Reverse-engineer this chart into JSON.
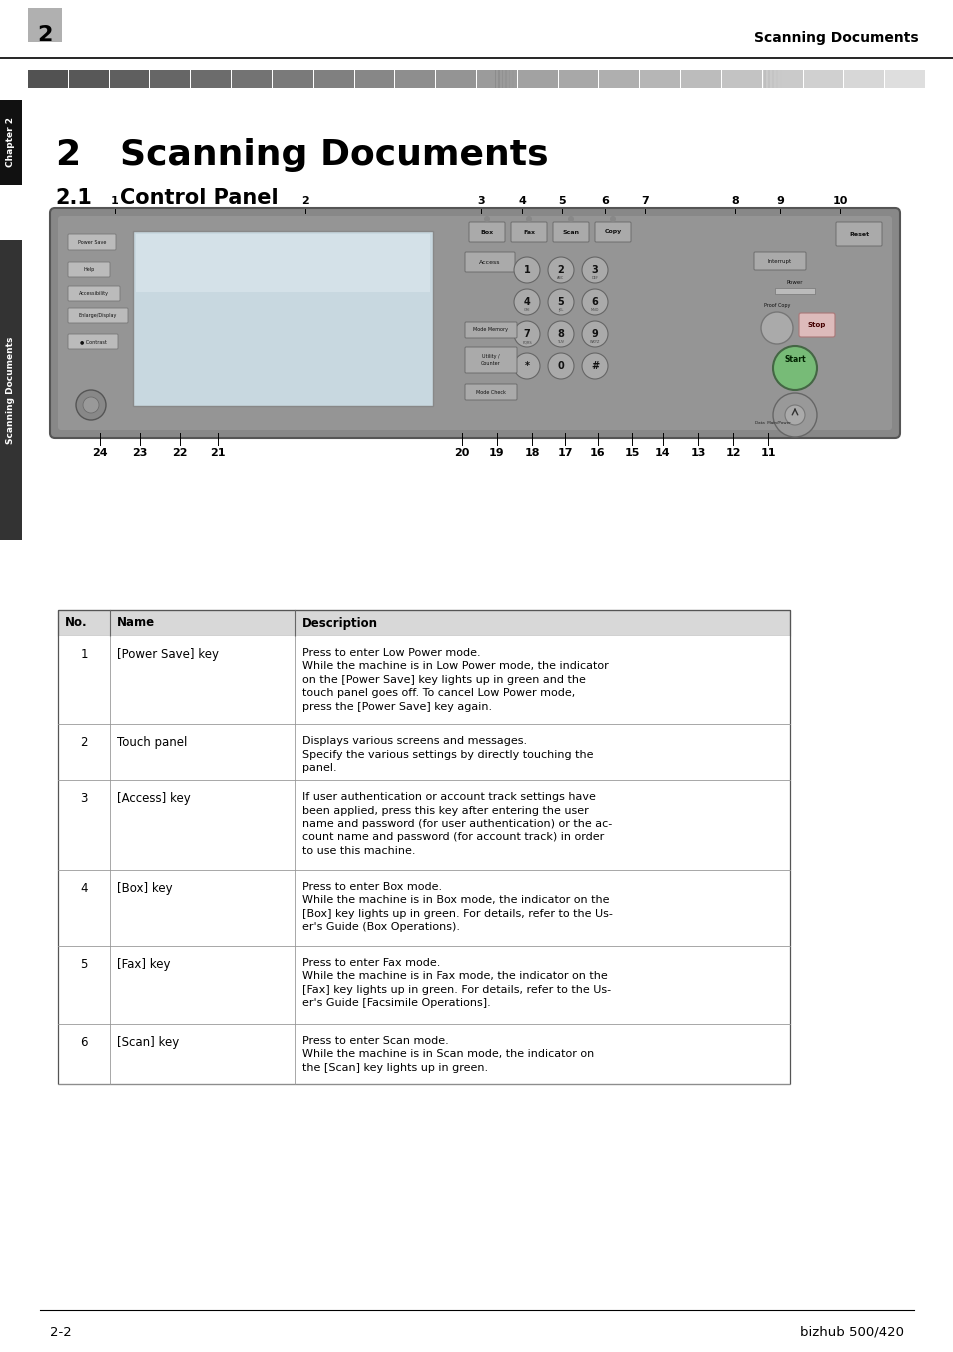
{
  "page_bg": "#ffffff",
  "header_num": "2",
  "header_title": "Scanning Documents",
  "chapter_tab_text": "Chapter 2",
  "side_tab_text": "Scanning Documents",
  "chapter_number": "2",
  "chapter_heading": "Scanning Documents",
  "section_number": "2.1",
  "section_heading": "Control Panel",
  "footer_left": "2-2",
  "footer_right": "bizhub 500/420",
  "table_header": [
    "No.",
    "Name",
    "Description"
  ],
  "table_header_bg": "#d8d8d8",
  "table_rows": [
    {
      "no": "1",
      "name": "[Power Save] key",
      "desc": "Press to enter Low Power mode.\nWhile the machine is in Low Power mode, the indicator\non the [Power Save] key lights up in green and the\ntouch panel goes off. To cancel Low Power mode,\npress the [Power Save] key again."
    },
    {
      "no": "2",
      "name": "Touch panel",
      "desc": "Displays various screens and messages.\nSpecify the various settings by directly touching the\npanel."
    },
    {
      "no": "3",
      "name": "[Access] key",
      "desc": "If user authentication or account track settings have\nbeen applied, press this key after entering the user\nname and password (for user authentication) or the ac-\ncount name and password (for account track) in order\nto use this machine."
    },
    {
      "no": "4",
      "name": "[Box] key",
      "desc": "Press to enter Box mode.\nWhile the machine is in Box mode, the indicator on the\n[Box] key lights up in green. For details, refer to the Us-\ner's Guide (Box Operations)."
    },
    {
      "no": "5",
      "name": "[Fax] key",
      "desc": "Press to enter Fax mode.\nWhile the machine is in Fax mode, the indicator on the\n[Fax] key lights up in green. For details, refer to the Us-\ner's Guide [Facsimile Operations]."
    },
    {
      "no": "6",
      "name": "[Scan] key",
      "desc": "Press to enter Scan mode.\nWhile the machine is in Scan mode, the indicator on\nthe [Scan] key lights up in green."
    }
  ]
}
